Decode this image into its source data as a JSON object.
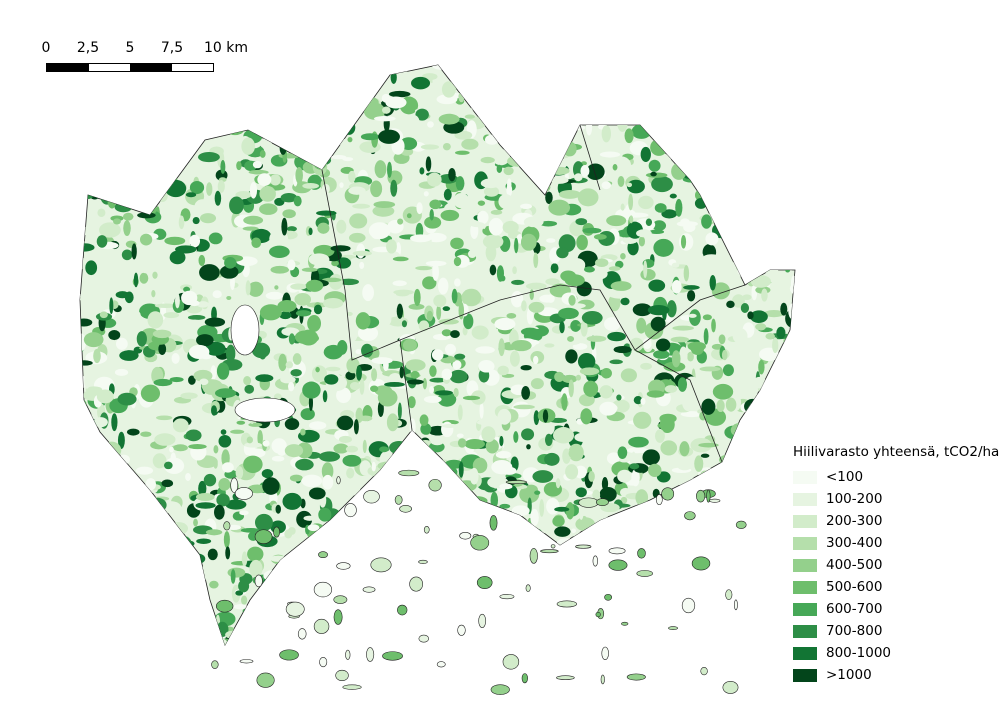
{
  "scale_bar": {
    "labels": [
      "0",
      "2,5",
      "5",
      "7,5",
      "10 km"
    ],
    "segment_colors": [
      "#000000",
      "#ffffff",
      "#000000",
      "#ffffff"
    ]
  },
  "legend": {
    "title": "Hiilivarasto yhteensä, tCO2/ha",
    "items": [
      {
        "label": "<100",
        "color": "#f5fbf3"
      },
      {
        "label": "100-200",
        "color": "#e6f4e1"
      },
      {
        "label": "200-300",
        "color": "#d2ecca"
      },
      {
        "label": "300-400",
        "color": "#b5dfab"
      },
      {
        "label": "400-500",
        "color": "#94d08c"
      },
      {
        "label": "500-600",
        "color": "#6ebe6c"
      },
      {
        "label": "600-700",
        "color": "#46a857"
      },
      {
        "label": "700-800",
        "color": "#2d8e46"
      },
      {
        "label": "800-1000",
        "color": "#127534"
      },
      {
        "label": ">1000",
        "color": "#03451b"
      }
    ]
  }
}
